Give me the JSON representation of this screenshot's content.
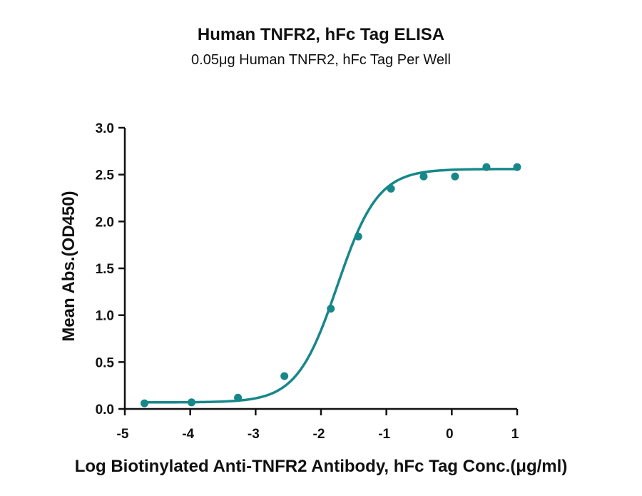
{
  "chart_data": {
    "type": "scatter",
    "title": "Human TNFR2, hFc Tag ELISA",
    "subtitle": "0.05μg Human TNFR2, hFc Tag Per Well",
    "xlabel": "Log Biotinylated Anti-TNFR2 Antibody, hFc Tag Conc.(μg/ml)",
    "ylabel": "Mean Abs.(OD450)",
    "xlim": [
      -5,
      1
    ],
    "ylim": [
      0,
      3.0
    ],
    "x_ticks": [
      "-5",
      "-4",
      "-3",
      "-2",
      "-1",
      "0",
      "1"
    ],
    "y_ticks": [
      "0.0",
      "0.5",
      "1.0",
      "1.5",
      "2.0",
      "2.5",
      "3.0"
    ],
    "color": "#17878a",
    "grid": false,
    "legend": "none",
    "series": [
      {
        "points": [
          {
            "x": -4.7,
            "y": 0.06
          },
          {
            "x": -3.98,
            "y": 0.07
          },
          {
            "x": -3.27,
            "y": 0.12
          },
          {
            "x": -2.56,
            "y": 0.35
          },
          {
            "x": -1.85,
            "y": 1.07
          },
          {
            "x": -1.43,
            "y": 1.84
          },
          {
            "x": -0.93,
            "y": 2.35
          },
          {
            "x": -0.43,
            "y": 2.48
          },
          {
            "x": 0.05,
            "y": 2.48
          },
          {
            "x": 0.53,
            "y": 2.58
          },
          {
            "x": 1.0,
            "y": 2.58
          }
        ],
        "fit": {
          "model": "4PL",
          "bottom": 0.07,
          "top": 2.56,
          "log_ec50": -1.75,
          "hill_slope": 1.4
        }
      }
    ]
  }
}
